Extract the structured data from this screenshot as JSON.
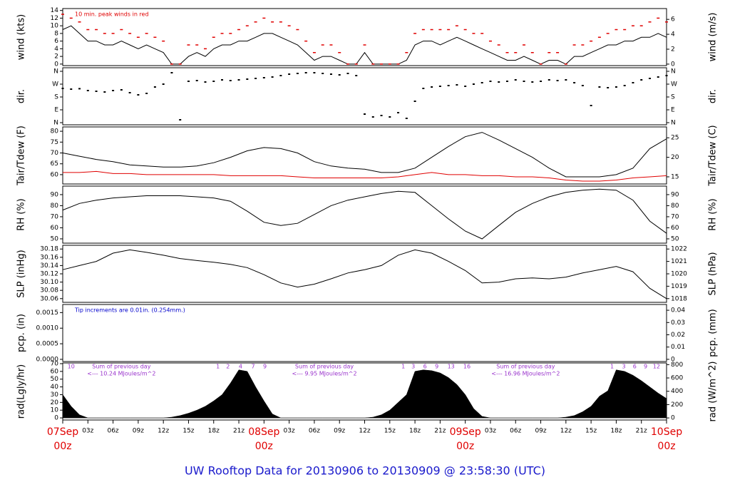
{
  "title": "UW Rooftop Data for 20130906  to  20130909 @ 23:58:30  (UTC)",
  "xaxis": {
    "xlim": [
      0,
      72
    ],
    "xticks": [
      {
        "value": 0,
        "label": "00z"
      },
      {
        "value": 3,
        "label": "03z"
      },
      {
        "value": 6,
        "label": "06z"
      },
      {
        "value": 9,
        "label": "09z"
      },
      {
        "value": 12,
        "label": "12z"
      },
      {
        "value": 15,
        "label": "15z"
      },
      {
        "value": 18,
        "label": "18z"
      },
      {
        "value": 21,
        "label": "21z"
      },
      {
        "value": 24,
        "label": "00z"
      },
      {
        "value": 27,
        "label": "03z"
      },
      {
        "value": 30,
        "label": "06z"
      },
      {
        "value": 33,
        "label": "09z"
      },
      {
        "value": 36,
        "label": "12z"
      },
      {
        "value": 39,
        "label": "15z"
      },
      {
        "value": 42,
        "label": "18z"
      },
      {
        "value": 45,
        "label": "21z"
      },
      {
        "value": 48,
        "label": "00z"
      },
      {
        "value": 51,
        "label": "03z"
      },
      {
        "value": 54,
        "label": "06z"
      },
      {
        "value": 57,
        "label": "09z"
      },
      {
        "value": 60,
        "label": "12z"
      },
      {
        "value": 63,
        "label": "15z"
      },
      {
        "value": 66,
        "label": "18z"
      },
      {
        "value": 69,
        "label": "21z"
      },
      {
        "value": 72,
        "label": "00z"
      }
    ],
    "xdates": [
      {
        "value": 0,
        "label": "07Sep"
      },
      {
        "value": 24,
        "label": "08Sep"
      },
      {
        "value": 48,
        "label": "09Sep"
      },
      {
        "value": 72,
        "label": "10Sep"
      }
    ],
    "date_color": "#e00000"
  },
  "chart_data": [
    {
      "type": "line",
      "ylabel": "wind (kts)",
      "y2label": "wind (m/s)",
      "ylim": [
        -0.4,
        14.5
      ],
      "yticks": [
        0,
        2,
        4,
        6,
        8,
        10,
        12,
        14
      ],
      "y2lim": [
        -0.2,
        7.45
      ],
      "y2ticks": [
        0,
        2,
        4,
        6
      ],
      "note": "10 min. peak winds in red",
      "note_color": "#e00000",
      "x": [
        0,
        1,
        2,
        3,
        4,
        5,
        6,
        7,
        8,
        9,
        10,
        11,
        12,
        13,
        14,
        15,
        16,
        17,
        18,
        19,
        20,
        21,
        22,
        23,
        24,
        25,
        26,
        27,
        28,
        29,
        30,
        31,
        32,
        33,
        34,
        35,
        36,
        37,
        38,
        39,
        40,
        41,
        42,
        43,
        44,
        45,
        46,
        47,
        48,
        49,
        50,
        51,
        52,
        53,
        54,
        55,
        56,
        57,
        58,
        59,
        60,
        61,
        62,
        63,
        64,
        65,
        66,
        67,
        68,
        69,
        70,
        71,
        72
      ],
      "series": [
        {
          "color": "#000000",
          "mode": "line",
          "values": [
            9,
            10,
            8,
            6,
            6,
            5,
            5,
            6,
            5,
            4,
            5,
            4,
            3,
            0,
            0,
            2,
            3,
            2,
            4,
            5,
            5,
            6,
            6,
            7,
            8,
            8,
            7,
            6,
            5,
            3,
            1,
            2,
            2,
            1,
            0,
            0,
            3,
            0,
            0,
            0,
            0,
            1,
            5,
            6,
            6,
            5,
            6,
            7,
            6,
            5,
            4,
            3,
            2,
            1,
            1,
            2,
            1,
            0,
            1,
            1,
            0,
            2,
            2,
            3,
            4,
            5,
            5,
            6,
            6,
            7,
            7,
            8,
            7
          ]
        },
        {
          "color": "#e00000",
          "mode": "markers",
          "values": [
            13,
            12,
            11,
            9,
            9,
            8,
            8,
            9,
            8,
            7,
            8,
            7,
            6,
            0,
            0,
            5,
            5,
            4,
            7,
            8,
            8,
            9,
            10,
            11,
            12,
            11,
            11,
            10,
            9,
            6,
            3,
            5,
            5,
            3,
            0,
            0,
            5,
            0,
            0,
            0,
            0,
            3,
            8,
            9,
            9,
            9,
            9,
            10,
            9,
            8,
            8,
            6,
            5,
            3,
            3,
            5,
            3,
            0,
            3,
            3,
            0,
            5,
            5,
            6,
            7,
            8,
            9,
            9,
            10,
            10,
            11,
            12,
            11
          ]
        }
      ]
    },
    {
      "type": "scatter",
      "ylabel": "dir.",
      "y2label": "dir.",
      "ylim": [
        -15,
        385
      ],
      "yticks": [
        {
          "value": 0,
          "label": "N"
        },
        {
          "value": 90,
          "label": "E"
        },
        {
          "value": 180,
          "label": "S"
        },
        {
          "value": 270,
          "label": "W"
        },
        {
          "value": 360,
          "label": "N"
        }
      ],
      "y2lim": [
        -15,
        385
      ],
      "y2ticks": [
        {
          "value": 0,
          "label": "N"
        },
        {
          "value": 90,
          "label": "E"
        },
        {
          "value": 180,
          "label": "S"
        },
        {
          "value": 270,
          "label": "W"
        },
        {
          "value": 360,
          "label": "N"
        }
      ],
      "x": [
        0,
        1,
        2,
        3,
        4,
        5,
        6,
        7,
        8,
        9,
        10,
        11,
        12,
        13,
        14,
        15,
        16,
        17,
        18,
        19,
        20,
        21,
        22,
        23,
        24,
        25,
        26,
        27,
        28,
        29,
        30,
        31,
        32,
        33,
        34,
        35,
        36,
        37,
        38,
        39,
        40,
        41,
        42,
        43,
        44,
        45,
        46,
        47,
        48,
        49,
        50,
        51,
        52,
        53,
        54,
        55,
        56,
        57,
        58,
        59,
        60,
        61,
        62,
        63,
        64,
        65,
        66,
        67,
        68,
        69,
        70,
        71,
        72
      ],
      "series": [
        {
          "color": "#000000",
          "values": [
            240,
            235,
            238,
            225,
            220,
            215,
            225,
            230,
            210,
            195,
            205,
            250,
            270,
            350,
            20,
            290,
            295,
            285,
            290,
            300,
            295,
            300,
            305,
            310,
            315,
            320,
            330,
            340,
            345,
            350,
            350,
            345,
            340,
            335,
            345,
            330,
            60,
            40,
            50,
            40,
            70,
            30,
            150,
            240,
            250,
            255,
            260,
            265,
            255,
            270,
            280,
            290,
            285,
            290,
            300,
            290,
            285,
            290,
            300,
            295,
            300,
            280,
            260,
            120,
            250,
            245,
            250,
            260,
            280,
            300,
            310,
            320,
            330
          ]
        }
      ]
    },
    {
      "type": "line",
      "ylabel": "Tair/Tdew (F)",
      "y2label": "Tair/Tdew (C)",
      "ylim": [
        55.7,
        82
      ],
      "yticks": [
        60,
        65,
        70,
        75,
        80
      ],
      "y2lim": [
        13.17,
        27.78
      ],
      "y2ticks": [
        15,
        20,
        25
      ],
      "x": [
        0,
        2,
        4,
        6,
        8,
        10,
        12,
        14,
        16,
        18,
        20,
        22,
        24,
        26,
        28,
        30,
        32,
        34,
        36,
        38,
        40,
        42,
        44,
        46,
        48,
        50,
        52,
        54,
        56,
        58,
        60,
        62,
        64,
        66,
        68,
        70,
        72
      ],
      "series": [
        {
          "color": "#000000",
          "mode": "line",
          "values": [
            70,
            68.5,
            67,
            66,
            64.5,
            64,
            63.5,
            63.5,
            64,
            65.5,
            68,
            71,
            72.5,
            72,
            70,
            66,
            64,
            63,
            62.5,
            61,
            61,
            63,
            68,
            73,
            77.5,
            79.5,
            76,
            72,
            68,
            63,
            59,
            59,
            59,
            60,
            63,
            72,
            76.5
          ]
        },
        {
          "color": "#e00000",
          "mode": "line",
          "values": [
            61,
            61,
            61.5,
            60.5,
            60.5,
            60,
            60,
            60,
            60,
            60,
            59.5,
            59.5,
            59.5,
            59.5,
            59,
            58.5,
            58.5,
            58.5,
            58.5,
            58.5,
            59,
            60,
            61,
            60,
            60,
            59.5,
            59.5,
            59,
            59,
            58.5,
            57.5,
            57,
            57,
            57.5,
            58.5,
            59,
            59.5
          ]
        }
      ]
    },
    {
      "type": "line",
      "ylabel": "RH (%)",
      "y2label": "RH (%)",
      "ylim": [
        46.1,
        97.7
      ],
      "yticks": [
        50,
        60,
        70,
        80,
        90
      ],
      "y2lim": [
        46.1,
        97.7
      ],
      "y2ticks": [
        50,
        60,
        70,
        80,
        90
      ],
      "x": [
        0,
        2,
        4,
        6,
        8,
        10,
        12,
        14,
        16,
        18,
        20,
        22,
        24,
        26,
        28,
        30,
        32,
        34,
        36,
        38,
        40,
        42,
        44,
        46,
        48,
        50,
        52,
        54,
        56,
        58,
        60,
        62,
        64,
        66,
        68,
        70,
        72
      ],
      "series": [
        {
          "color": "#000000",
          "mode": "line",
          "values": [
            76,
            82,
            85,
            87,
            88,
            89,
            89,
            89,
            88,
            87,
            84,
            75,
            65,
            62,
            64,
            72,
            80,
            85,
            88,
            91,
            93,
            92,
            80,
            68,
            57,
            50,
            62,
            74,
            82,
            88,
            92,
            94,
            95,
            94,
            85,
            66,
            55
          ]
        }
      ]
    },
    {
      "type": "line",
      "ylabel": "SLP (inHg)",
      "y2label": "SLP (hPa)",
      "ylim": [
        30.051,
        30.189
      ],
      "yticks": [
        30.06,
        30.08,
        {
          "value": 30.1,
          "label": "30.10"
        },
        30.12,
        30.14,
        30.16,
        30.18
      ],
      "y2lim": [
        1017.7,
        1022.3
      ],
      "y2ticks": [
        1018,
        1019,
        1020,
        1021,
        1022
      ],
      "x": [
        0,
        2,
        4,
        6,
        8,
        10,
        12,
        14,
        16,
        18,
        20,
        22,
        24,
        26,
        28,
        30,
        32,
        34,
        36,
        38,
        40,
        42,
        44,
        46,
        48,
        50,
        52,
        54,
        56,
        58,
        60,
        62,
        64,
        66,
        68,
        70,
        72
      ],
      "series": [
        {
          "color": "#000000",
          "mode": "line",
          "values": [
            30.13,
            30.14,
            30.15,
            30.17,
            30.178,
            30.172,
            30.165,
            30.157,
            30.152,
            30.148,
            30.143,
            30.135,
            30.118,
            30.098,
            30.088,
            30.095,
            30.108,
            30.122,
            30.13,
            30.14,
            30.165,
            30.178,
            30.17,
            30.15,
            30.128,
            30.098,
            30.1,
            30.108,
            30.11,
            30.108,
            30.112,
            30.122,
            30.13,
            30.138,
            30.125,
            30.085,
            30.06
          ]
        }
      ]
    },
    {
      "type": "line",
      "ylabel": "pcp. (in)",
      "y2label": "pcp. (mm)",
      "ylim": [
        -7e-05,
        0.00176
      ],
      "yticks": [
        {
          "value": 0,
          "label": "0.0000"
        },
        {
          "value": 0.0005,
          "label": "0.0005"
        },
        {
          "value": 0.001,
          "label": "0.0010"
        },
        {
          "value": 0.0015,
          "label": "0.0015"
        }
      ],
      "y2lim": [
        -0.0018,
        0.0447
      ],
      "y2ticks": [
        0,
        0.01,
        0.02,
        0.03,
        0.04
      ],
      "note": "Tip increments are 0.01in. (0.254mm.)",
      "note_color": "#0000cc",
      "x": [],
      "series": []
    },
    {
      "type": "area",
      "ylabel": "rad(Lgly/hr)",
      "y2label": "rad (W/m^2)",
      "ylim": [
        -2.7,
        70.9
      ],
      "yticks": [
        0,
        10,
        20,
        30,
        40,
        50,
        60,
        70
      ],
      "y2lim": [
        -31,
        825
      ],
      "y2ticks": [
        0,
        200,
        400,
        600,
        800
      ],
      "annotation_color": "#9932cc",
      "markers": [
        {
          "x": 1.0,
          "label": "10"
        },
        {
          "x": 18.5,
          "label": "1"
        },
        {
          "x": 19.7,
          "label": "2"
        },
        {
          "x": 21.2,
          "label": "4"
        },
        {
          "x": 22.7,
          "label": "7"
        },
        {
          "x": 24.1,
          "label": "9"
        },
        {
          "x": 40.6,
          "label": "1"
        },
        {
          "x": 41.8,
          "label": "3"
        },
        {
          "x": 43.2,
          "label": "6"
        },
        {
          "x": 44.6,
          "label": "9"
        },
        {
          "x": 46.3,
          "label": "13"
        },
        {
          "x": 48.2,
          "label": "16"
        },
        {
          "x": 65.5,
          "label": "1"
        },
        {
          "x": 66.9,
          "label": "3"
        },
        {
          "x": 68.2,
          "label": "6"
        },
        {
          "x": 69.5,
          "label": "9"
        },
        {
          "x": 70.8,
          "label": "12"
        }
      ],
      "sums": [
        {
          "x": 7,
          "lines": [
            "Sum of previous day",
            "<--- 10.24 MJoules/m^2"
          ]
        },
        {
          "x": 31.2,
          "lines": [
            "Sum of previous day",
            "<--- 9.95 MJoules/m^2"
          ]
        },
        {
          "x": 55.2,
          "lines": [
            "Sum of previous day",
            "<--- 16.96 MJoules/m^2"
          ]
        }
      ],
      "x": [
        0,
        1,
        2,
        3,
        4,
        5,
        6,
        7,
        8,
        9,
        10,
        11,
        12,
        13,
        14,
        15,
        16,
        17,
        18,
        19,
        20,
        21,
        22,
        23,
        24,
        25,
        26,
        27,
        28,
        29,
        30,
        31,
        32,
        33,
        34,
        35,
        36,
        37,
        38,
        39,
        40,
        41,
        42,
        43,
        44,
        45,
        46,
        47,
        48,
        49,
        50,
        51,
        52,
        53,
        54,
        55,
        56,
        57,
        58,
        59,
        60,
        61,
        62,
        63,
        64,
        65,
        66,
        67,
        68,
        69,
        70,
        71,
        72
      ],
      "series": [
        {
          "color": "#000000",
          "values": [
            30,
            15,
            4,
            0,
            0,
            0,
            0,
            0,
            0,
            0,
            0,
            0,
            0,
            1,
            3,
            6,
            10,
            15,
            22,
            30,
            45,
            62,
            60,
            40,
            22,
            5,
            0,
            0,
            0,
            0,
            0,
            0,
            0,
            0,
            0,
            0,
            0,
            1,
            4,
            10,
            20,
            30,
            60,
            62,
            61,
            58,
            52,
            43,
            30,
            12,
            2,
            0,
            0,
            0,
            0,
            0,
            0,
            0,
            0,
            0,
            1,
            3,
            8,
            15,
            28,
            35,
            62,
            60,
            55,
            48,
            40,
            32,
            25
          ]
        }
      ]
    }
  ]
}
